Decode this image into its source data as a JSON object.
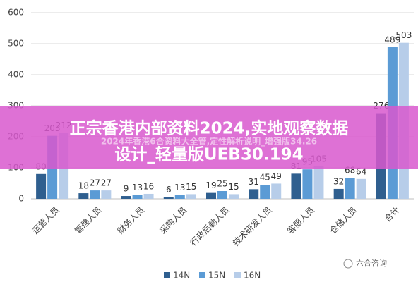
{
  "chart_data": {
    "type": "bar",
    "categories": [
      "运营人员",
      "管理人员",
      "财务人员",
      "采购人员",
      "行政后勤人员",
      "技术研发人员",
      "客服人员",
      "仓储人员",
      "合计"
    ],
    "series": [
      {
        "name": "14N",
        "color": "#2f5f8f",
        "values": [
          80,
          18,
          9,
          6,
          19,
          31,
          81,
          32,
          276
        ]
      },
      {
        "name": "15N",
        "color": "#5b9bd5",
        "values": [
          203,
          27,
          13,
          13,
          25,
          45,
          95,
          68,
          489
        ]
      },
      {
        "name": "16N",
        "color": "#b7cde9",
        "values": [
          212,
          27,
          16,
          15,
          15,
          49,
          105,
          64,
          503
        ]
      }
    ],
    "ylim": [
      0,
      600
    ],
    "yticks": [
      0,
      100,
      200,
      300,
      400,
      500,
      600
    ],
    "grid": true
  },
  "overlay": {
    "title_lines": [
      "正宗香港内部资料2024,实地观察数据",
      "设计_轻量版UEB30.194"
    ],
    "subtitle": "2024年香港6合资料大全管,定性解析说明_增强版34.26",
    "watermark": "六合咨询"
  }
}
